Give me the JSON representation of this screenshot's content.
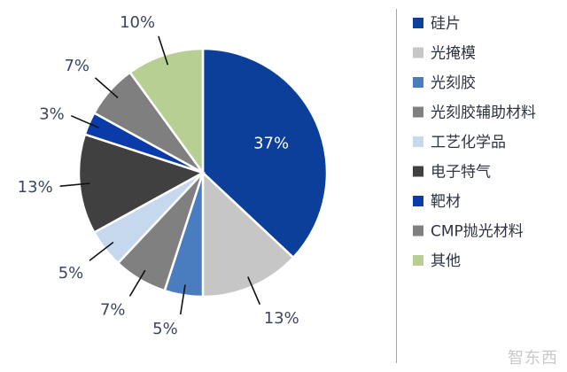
{
  "chart_data": {
    "type": "pie",
    "categories": [
      "硅片",
      "光掩模",
      "光刻胶",
      "光刻胶辅助材料",
      "工艺化学品",
      "电子特气",
      "靶材",
      "CMP抛光材料",
      "其他"
    ],
    "values": [
      37,
      13,
      5,
      7,
      5,
      13,
      3,
      7,
      10
    ],
    "value_labels": [
      "37%",
      "13%",
      "5%",
      "7%",
      "5%",
      "13%",
      "3%",
      "7%",
      "10%"
    ],
    "colors": [
      "#0b3f99",
      "#c6c6c6",
      "#4a7dc0",
      "#808080",
      "#c6d8ee",
      "#404040",
      "#0a3ba8",
      "#7f7f7f",
      "#b7cf93"
    ],
    "legend_position": "right",
    "start_angle_deg": 0,
    "direction": "clockwise"
  },
  "watermark": "智东西"
}
